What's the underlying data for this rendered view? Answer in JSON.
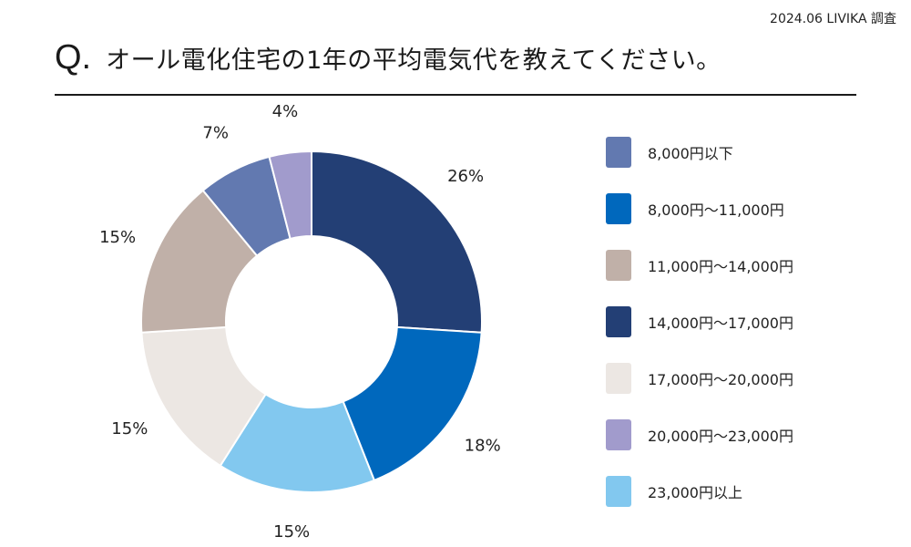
{
  "source": "2024.06 LIVIKA 調査",
  "question": {
    "mark": "Q.",
    "text": "オール電化住宅の1年の平均電気代を教えてください。"
  },
  "chart_data": {
    "type": "pie",
    "donut": true,
    "title": "",
    "legend_position": "right",
    "categories": [
      "8,000円以下",
      "8,000円〜11,000円",
      "11,000円〜14,000円",
      "14,000円〜17,000円",
      "17,000円〜20,000円",
      "20,000円〜23,000円",
      "23,000円以上"
    ],
    "values": [
      7,
      18,
      15,
      26,
      15,
      4,
      15
    ],
    "labels": [
      "7%",
      "18%",
      "15%",
      "26%",
      "15%",
      "4%",
      "15%"
    ],
    "colors": [
      "#6279b0",
      "#0068bd",
      "#c0b0a8",
      "#233f75",
      "#ece7e3",
      "#a19bcc",
      "#82c8ef"
    ],
    "draw_order": [
      3,
      1,
      6,
      4,
      2,
      0,
      5
    ]
  }
}
